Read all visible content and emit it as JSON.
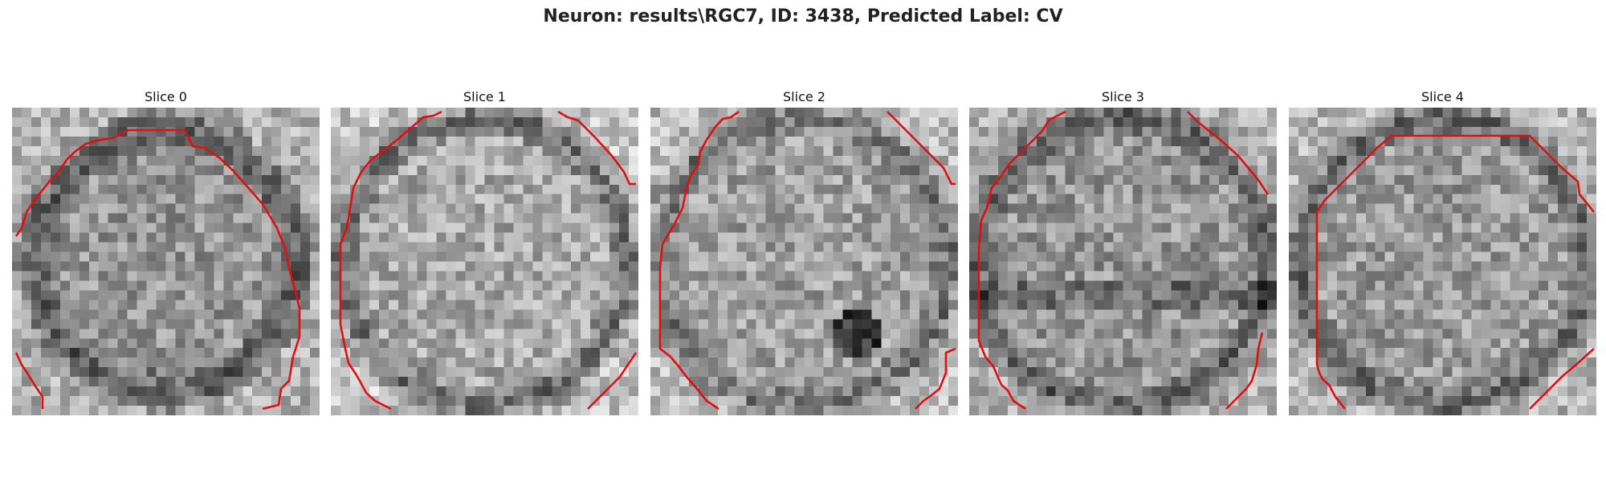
{
  "figure": {
    "title": "Neuron: results\\RGC7, ID: 3438, Predicted Label: CV"
  },
  "slices": [
    {
      "label": "Slice 0"
    },
    {
      "label": "Slice 1"
    },
    {
      "label": "Slice 2"
    },
    {
      "label": "Slice 3"
    },
    {
      "label": "Slice 4"
    }
  ],
  "colors": {
    "contour": "#e01010"
  },
  "colormap": "gray"
}
